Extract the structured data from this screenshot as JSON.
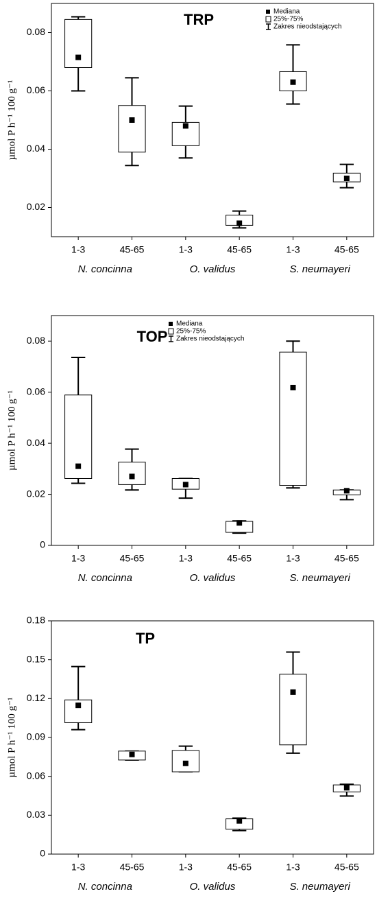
{
  "chart_data": [
    {
      "type": "box",
      "title": "TRP",
      "ylabel": "µmol P h⁻¹ 100 g⁻¹",
      "categories": [
        "1-3",
        "45-65",
        "1-3",
        "45-65",
        "1-3",
        "45-65"
      ],
      "groups": [
        "N. concinna",
        "O. validus",
        "S. neumayeri"
      ],
      "min": [
        0.06,
        0.0344,
        0.037,
        0.013,
        0.0555,
        0.0268
      ],
      "q1": [
        0.068,
        0.039,
        0.0412,
        0.0139,
        0.06,
        0.0288
      ],
      "median": [
        0.0715,
        0.05,
        0.048,
        0.0146,
        0.063,
        0.03
      ],
      "q3": [
        0.0845,
        0.055,
        0.0492,
        0.0174,
        0.0666,
        0.0318
      ],
      "max": [
        0.0854,
        0.0645,
        0.0548,
        0.0188,
        0.0758,
        0.0348
      ],
      "ylim": [
        0.01,
        0.09
      ],
      "yticks": [
        0.02,
        0.04,
        0.06,
        0.08
      ],
      "legend": "upper right",
      "legend_labels": [
        "Mediana",
        "25%-75%",
        "Zakres nieodstających"
      ],
      "color": "#000000"
    },
    {
      "type": "box",
      "title": "TOP",
      "ylabel": "µmol P h⁻¹ 100 g⁻¹",
      "categories": [
        "1-3",
        "45-65",
        "1-3",
        "45-65",
        "1-3",
        "45-65"
      ],
      "groups": [
        "N. concinna",
        "O. validus",
        "S. neumayeri"
      ],
      "min": [
        0.0243,
        0.0217,
        0.0185,
        0.0048,
        0.0225,
        0.0179
      ],
      "q1": [
        0.0262,
        0.0238,
        0.022,
        0.0051,
        0.0235,
        0.0198
      ],
      "median": [
        0.031,
        0.027,
        0.0238,
        0.0088,
        0.0618,
        0.0214
      ],
      "q3": [
        0.0589,
        0.0326,
        0.0262,
        0.0094,
        0.0757,
        0.0217
      ],
      "max": [
        0.0736,
        0.0377,
        0.0262,
        0.0096,
        0.08,
        0.0217
      ],
      "ylim": [
        0,
        0.09
      ],
      "yticks": [
        0,
        0.02,
        0.04,
        0.06,
        0.08
      ],
      "legend": "upper center",
      "legend_labels": [
        "Mediana",
        "25%-75%",
        "Zakres nieodstających"
      ],
      "color": "#000000"
    },
    {
      "type": "box",
      "title": "TP",
      "ylabel": "µmol P h⁻¹ 100 g⁻¹",
      "categories": [
        "1-3",
        "45-65",
        "1-3",
        "45-65",
        "1-3",
        "45-65"
      ],
      "groups": [
        "N. concinna",
        "O. validus",
        "S. neumayeri"
      ],
      "min": [
        0.096,
        0.0726,
        0.0635,
        0.0181,
        0.0779,
        0.0448
      ],
      "q1": [
        0.1014,
        0.0726,
        0.0635,
        0.0192,
        0.0843,
        0.048
      ],
      "median": [
        0.1148,
        0.0769,
        0.07,
        0.0256,
        0.125,
        0.0512
      ],
      "q3": [
        0.119,
        0.0795,
        0.08,
        0.0272,
        0.1388,
        0.0534
      ],
      "max": [
        0.1447,
        0.0795,
        0.0833,
        0.0278,
        0.1559,
        0.0539
      ],
      "ylim": [
        0,
        0.18
      ],
      "yticks": [
        0,
        0.03,
        0.06,
        0.09,
        0.12,
        0.15,
        0.18
      ],
      "color": "#000000"
    }
  ]
}
